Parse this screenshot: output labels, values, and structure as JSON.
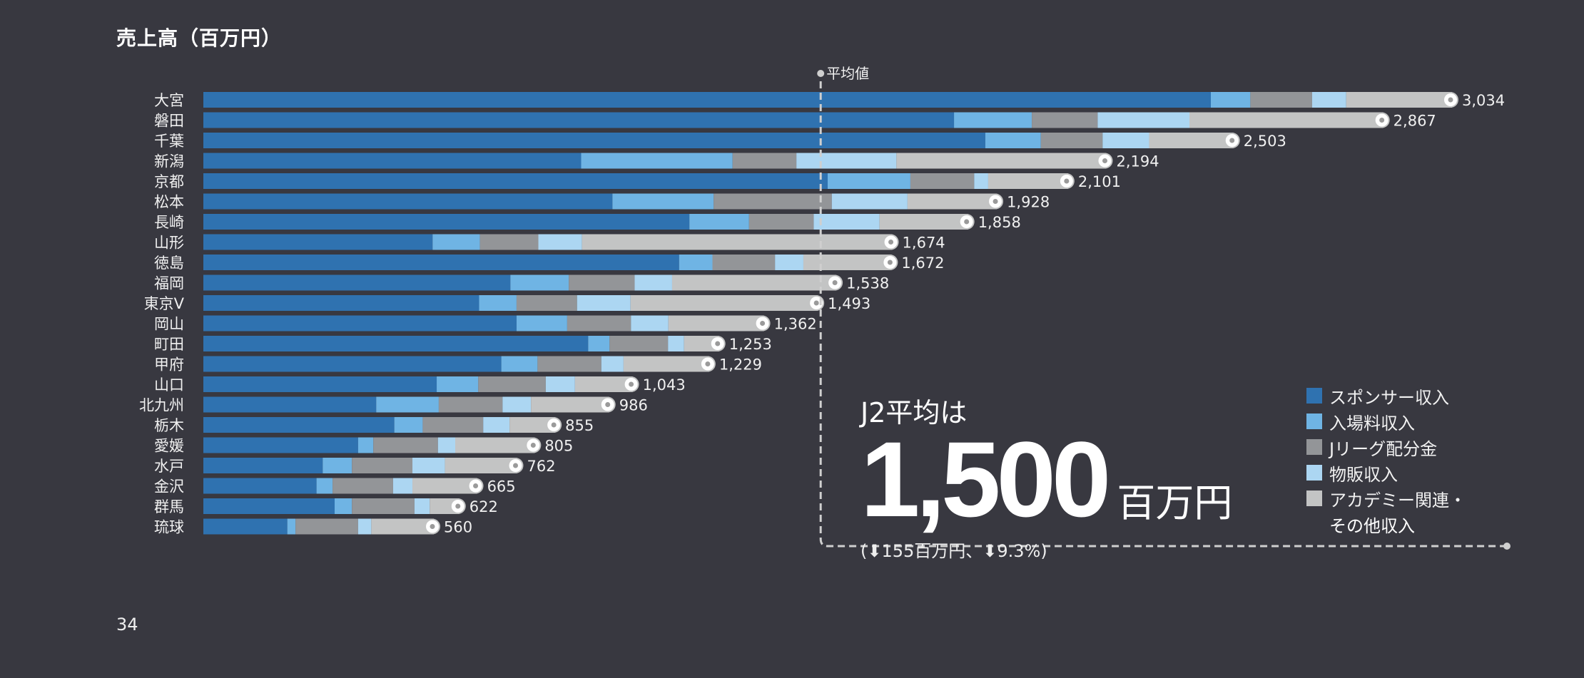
{
  "chart_data": {
    "type": "bar",
    "orientation": "horizontal",
    "stacked": true,
    "title": "売上高（百万円）",
    "xlim": [
      0,
      3034
    ],
    "average": {
      "label": "平均値",
      "value": 1500
    },
    "categories": [
      "大宮",
      "磐田",
      "千葉",
      "新潟",
      "京都",
      "松本",
      "長崎",
      "山形",
      "徳島",
      "福岡",
      "東京V",
      "岡山",
      "町田",
      "甲府",
      "山口",
      "北九州",
      "栃木",
      "愛媛",
      "水戸",
      "金沢",
      "群馬",
      "琉球"
    ],
    "totals": [
      3034,
      2867,
      2503,
      2194,
      2101,
      1928,
      1858,
      1674,
      1672,
      1538,
      1493,
      1362,
      1253,
      1229,
      1043,
      986,
      855,
      805,
      762,
      665,
      622,
      560
    ],
    "total_labels": [
      "3,034",
      "2,867",
      "2,503",
      "2,194",
      "2,101",
      "1,928",
      "1,858",
      "1,674",
      "1,672",
      "1,538",
      "1,493",
      "1,362",
      "1,253",
      "1,229",
      "1,043",
      "986",
      "855",
      "805",
      "762",
      "665",
      "622",
      "560"
    ],
    "series": [
      {
        "name": "スポンサー収入",
        "color": "#2f72b0",
        "values": [
          2448,
          1824,
          1900,
          918,
          1517,
          994,
          1181,
          557,
          1156,
          746,
          670,
          761,
          935,
          724,
          567,
          420,
          464,
          376,
          290,
          275,
          319,
          204
        ]
      },
      {
        "name": "入場料収入",
        "color": "#6fb4e4",
        "values": [
          96,
          189,
          135,
          368,
          201,
          246,
          145,
          115,
          81,
          142,
          91,
          123,
          52,
          88,
          101,
          152,
          69,
          37,
          71,
          39,
          42,
          20
        ]
      },
      {
        "name": "Jリーグ配分金",
        "color": "#939598",
        "values": [
          150,
          160,
          150,
          155,
          155,
          287,
          157,
          142,
          152,
          160,
          147,
          155,
          142,
          155,
          164,
          155,
          147,
          157,
          147,
          147,
          152,
          152
        ]
      },
      {
        "name": "物販収入",
        "color": "#acd6f2",
        "values": [
          83,
          223,
          113,
          243,
          34,
          184,
          160,
          106,
          69,
          91,
          130,
          91,
          39,
          54,
          71,
          69,
          64,
          42,
          79,
          47,
          37,
          32
        ]
      },
      {
        "name": "アカデミー関連・その他収入",
        "color": "#c3c4c4",
        "values": [
          257,
          471,
          205,
          510,
          194,
          217,
          215,
          754,
          214,
          399,
          455,
          232,
          85,
          208,
          140,
          190,
          111,
          193,
          175,
          157,
          72,
          152
        ]
      }
    ],
    "legend": [
      "スポンサー収入",
      "入場料収入",
      "Jリーグ配分金",
      "物販収入",
      "アカデミー関連・",
      "その他収入"
    ],
    "legend_position": "bottom-right"
  },
  "summary": {
    "heading": "J2平均は",
    "value": "1,500",
    "unit": "百万円",
    "change": "(⬇155百万円、⬇9.3%)"
  },
  "page_number": "34"
}
